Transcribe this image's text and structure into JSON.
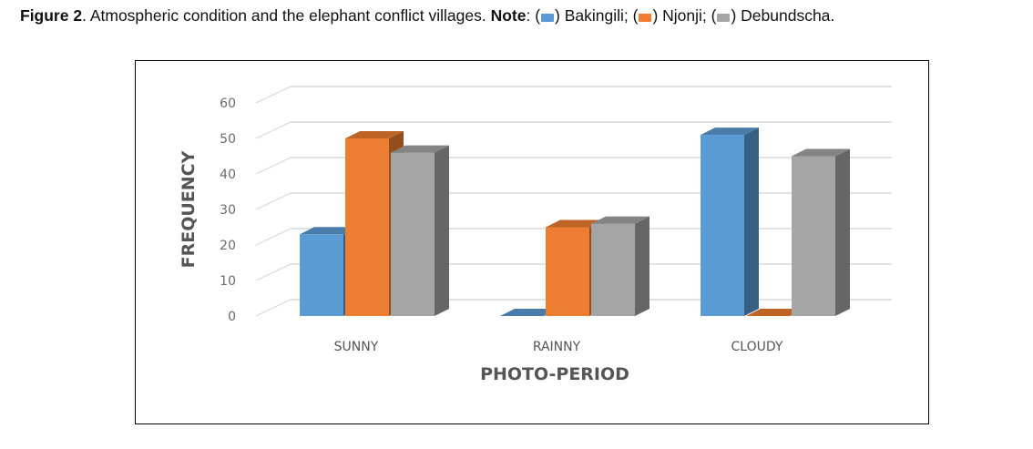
{
  "caption": {
    "figure": "Figure 2",
    "text": ". Atmospheric condition and the elephant conflict villages.",
    "note": "Note",
    "colon": ": ",
    "open1": "(",
    "close1": ") Bakingili; ",
    "open2": "(",
    "close2": ") Njonji; ",
    "open3": "(",
    "close3": ") Debundscha."
  },
  "chart_data": {
    "type": "bar",
    "style": "3d-clustered-column",
    "categories": [
      "SUNNY",
      "RAINNY",
      "CLOUDY"
    ],
    "series": [
      {
        "name": "Bakingili",
        "color": "#5b9bd5",
        "values": [
          23,
          0,
          51
        ]
      },
      {
        "name": "Njonji",
        "color": "#ed7d31",
        "values": [
          50,
          25,
          0
        ]
      },
      {
        "name": "Debundscha",
        "color": "#a5a5a5",
        "values": [
          46,
          26,
          45
        ]
      }
    ],
    "title": "",
    "xlabel": "PHOTO-PERIOD",
    "ylabel": "FREQUENCY",
    "ylim": [
      0,
      60
    ],
    "yticks": [
      0,
      10,
      20,
      30,
      40,
      50,
      60
    ],
    "grid": true,
    "legend": "in caption"
  }
}
